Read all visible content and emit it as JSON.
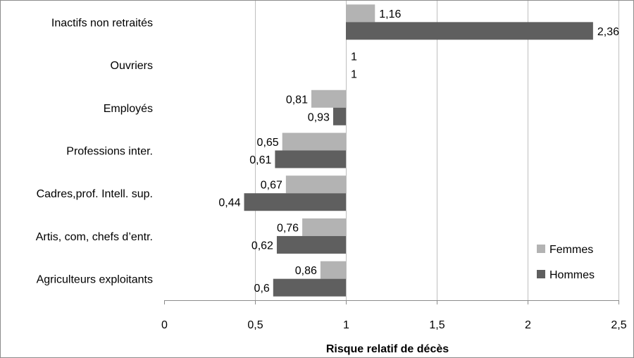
{
  "chart_data": {
    "type": "bar",
    "orientation": "horizontal",
    "categories": [
      "Inactifs non retraités",
      "Ouvriers",
      "Employés",
      "Professions inter.",
      "Cadres,prof. Intell. sup.",
      "Artis, com, chefs d’entr.",
      "Agriculteurs exploitants"
    ],
    "series": [
      {
        "name": "Femmes",
        "color": "#b3b3b3",
        "values": [
          1.16,
          1,
          0.81,
          0.65,
          0.67,
          0.76,
          0.86
        ],
        "labels": [
          "1,16",
          "1",
          "0,81",
          "0,65",
          "0,67",
          "0,76",
          "0,86"
        ]
      },
      {
        "name": "Hommes",
        "color": "#5f5f5f",
        "values": [
          2.36,
          1,
          0.93,
          0.61,
          0.44,
          0.62,
          0.6
        ],
        "labels": [
          "2,36",
          "1",
          "0,93",
          "0,61",
          "0,44",
          "0,62",
          "0,6"
        ]
      }
    ],
    "baseline": 1,
    "xlim": [
      0,
      2.5
    ],
    "xticks": [
      0,
      0.5,
      1,
      1.5,
      2,
      2.5
    ],
    "xtick_labels": [
      "0",
      "0,5",
      "1",
      "1,5",
      "2",
      "2,5"
    ],
    "xlabel": "Risque relatif de décès",
    "ylabel": "",
    "title": "",
    "grid": true,
    "legend_position": "bottom-right"
  }
}
